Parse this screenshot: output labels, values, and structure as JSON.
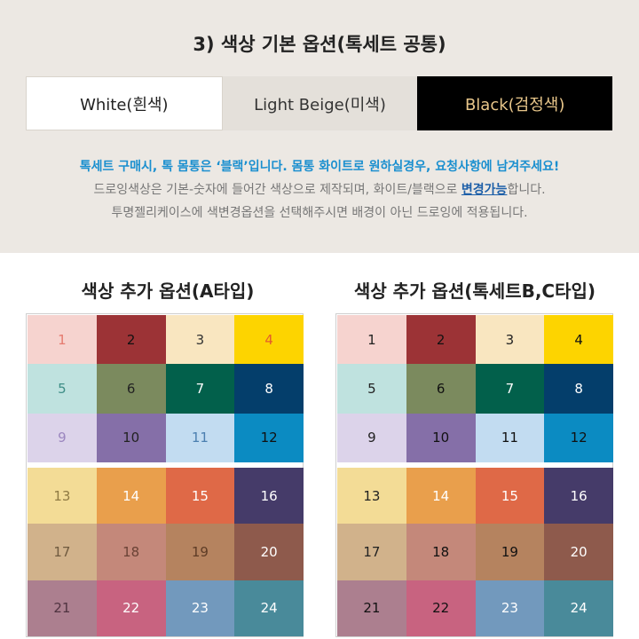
{
  "header": {
    "title": "3) 색상 기본 옵션(톡세트 공통)"
  },
  "base_options": [
    {
      "label": "White(흰색)"
    },
    {
      "label": "Light Beige(미색)"
    },
    {
      "label": "Black(검정색)"
    }
  ],
  "notes": {
    "line1": "톡세트 구매시, 톡 몸통은 ‘블랙’입니다. 몸통 화이트로 원하실경우, 요청사항에 남겨주세요!",
    "line2_pre": "드로잉색상은 기본-숫자에 들어간 색상으로 제작되며, 화이트/블랙으로 ",
    "line2_link": "변경가능",
    "line2_post": "합니다.",
    "line3": "투명젤리케이스에 색변경옵션을 선택해주시면 배경이 아닌 드로잉에 적용됩니다."
  },
  "section_a": {
    "title": "색상 추가 옵션(A타입)"
  },
  "section_bc": {
    "title": "색상 추가 옵션(톡세트B,C타입)"
  },
  "swatches": [
    {
      "n": "1",
      "bg": "#f6d3cf",
      "a_text": "#e57a6f"
    },
    {
      "n": "2",
      "bg": "#9c3336",
      "a_text": "#111111"
    },
    {
      "n": "3",
      "bg": "#f9e6c0",
      "a_text": "#333333"
    },
    {
      "n": "4",
      "bg": "#fdd400",
      "a_text": "#e45c2a"
    },
    {
      "n": "5",
      "bg": "#bfe2df",
      "a_text": "#3e8e86"
    },
    {
      "n": "6",
      "bg": "#7b8a5e",
      "a_text": "#222222"
    },
    {
      "n": "7",
      "bg": "#02604b",
      "a_text": "#ffffff"
    },
    {
      "n": "8",
      "bg": "#043e6b",
      "a_text": "#ffffff"
    },
    {
      "n": "9",
      "bg": "#dcd3ea",
      "a_text": "#9b86bf"
    },
    {
      "n": "10",
      "bg": "#856fa8",
      "a_text": "#222222"
    },
    {
      "n": "11",
      "bg": "#c2dcf1",
      "a_text": "#4b7fb0"
    },
    {
      "n": "12",
      "bg": "#0b8bc2",
      "a_text": "#111111"
    },
    {
      "n": "13",
      "bg": "#f3dc96",
      "a_text": "#8f7a43"
    },
    {
      "n": "14",
      "bg": "#e99f4c",
      "a_text": "#ffffff"
    },
    {
      "n": "15",
      "bg": "#df6947",
      "a_text": "#ffffff"
    },
    {
      "n": "16",
      "bg": "#453b69",
      "a_text": "#ffffff"
    },
    {
      "n": "17",
      "bg": "#d1b28b",
      "a_text": "#6f5a3f"
    },
    {
      "n": "18",
      "bg": "#c4887a",
      "a_text": "#6a4236"
    },
    {
      "n": "19",
      "bg": "#b5835f",
      "a_text": "#5e3c26"
    },
    {
      "n": "20",
      "bg": "#8e5a4c",
      "a_text": "#ffffff"
    },
    {
      "n": "21",
      "bg": "#ac7f8f",
      "a_text": "#4f3340"
    },
    {
      "n": "22",
      "bg": "#c86380",
      "a_text": "#ffffff"
    },
    {
      "n": "23",
      "bg": "#7299bd",
      "a_text": "#ffffff"
    },
    {
      "n": "24",
      "bg": "#498a9a",
      "a_text": "#ffffff"
    }
  ],
  "bc_text_colors": [
    "#222222",
    "#111111",
    "#222222",
    "#111111",
    "#222222",
    "#111111",
    "#ffffff",
    "#ffffff",
    "#222222",
    "#111111",
    "#111111",
    "#111111",
    "#222222",
    "#ffffff",
    "#ffffff",
    "#ffffff",
    "#222222",
    "#111111",
    "#111111",
    "#ffffff",
    "#111111",
    "#111111",
    "#ffffff",
    "#ffffff"
  ]
}
